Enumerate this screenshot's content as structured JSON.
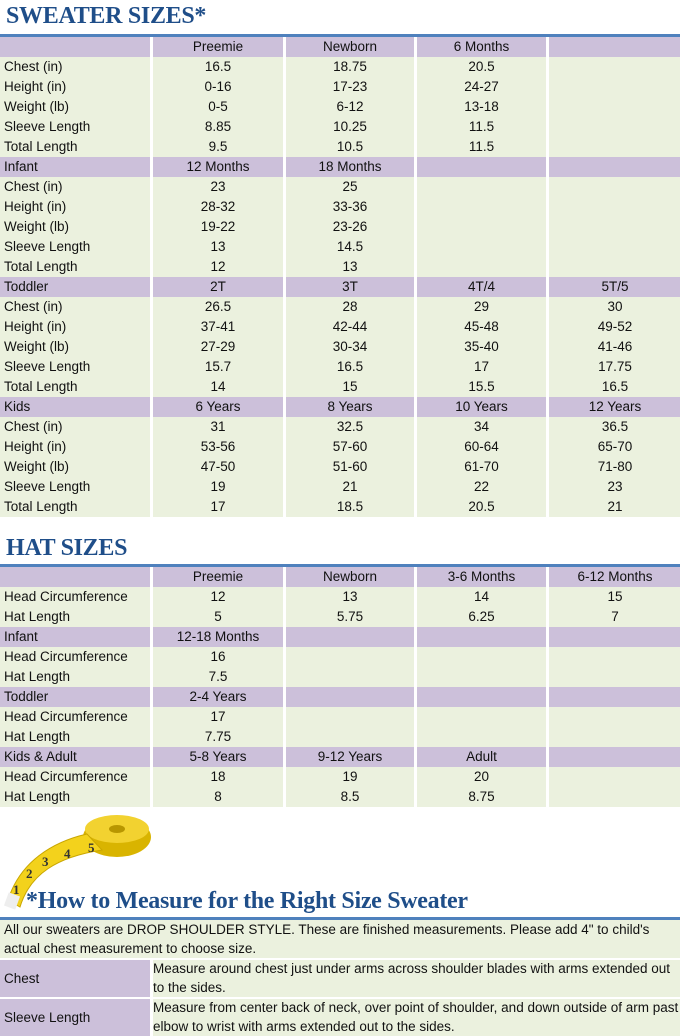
{
  "sweater": {
    "title": "SWEATER SIZES*",
    "groups": [
      {
        "header": [
          "",
          "Preemie",
          "Newborn",
          "6 Months",
          ""
        ],
        "rows": [
          [
            "Chest (in)",
            "16.5",
            "18.75",
            "20.5",
            ""
          ],
          [
            "Height (in)",
            "0-16",
            "17-23",
            "24-27",
            ""
          ],
          [
            "Weight (lb)",
            "0-5",
            "6-12",
            "13-18",
            ""
          ],
          [
            "Sleeve Length",
            "8.85",
            "10.25",
            "11.5",
            ""
          ],
          [
            "Total Length",
            "9.5",
            "10.5",
            "11.5",
            ""
          ]
        ]
      },
      {
        "header": [
          "Infant",
          "12 Months",
          "18 Months",
          "",
          ""
        ],
        "rows": [
          [
            "Chest (in)",
            "23",
            "25",
            "",
            ""
          ],
          [
            "Height (in)",
            "28-32",
            "33-36",
            "",
            ""
          ],
          [
            "Weight (lb)",
            "19-22",
            "23-26",
            "",
            ""
          ],
          [
            "Sleeve Length",
            "13",
            "14.5",
            "",
            ""
          ],
          [
            "Total Length",
            "12",
            "13",
            "",
            ""
          ]
        ]
      },
      {
        "header": [
          "Toddler",
          "2T",
          "3T",
          "4T/4",
          "5T/5"
        ],
        "rows": [
          [
            "Chest (in)",
            "26.5",
            "28",
            "29",
            "30"
          ],
          [
            "Height (in)",
            "37-41",
            "42-44",
            "45-48",
            "49-52"
          ],
          [
            "Weight (lb)",
            "27-29",
            "30-34",
            "35-40",
            "41-46"
          ],
          [
            "Sleeve Length",
            "15.7",
            "16.5",
            "17",
            "17.75"
          ],
          [
            "Total Length",
            "14",
            "15",
            "15.5",
            "16.5"
          ]
        ]
      },
      {
        "header": [
          "Kids",
          "6 Years",
          "8 Years",
          "10 Years",
          "12 Years"
        ],
        "rows": [
          [
            "Chest (in)",
            "31",
            "32.5",
            "34",
            "36.5"
          ],
          [
            "Height (in)",
            "53-56",
            "57-60",
            "60-64",
            "65-70"
          ],
          [
            "Weight (lb)",
            "47-50",
            "51-60",
            "61-70",
            "71-80"
          ],
          [
            "Sleeve Length",
            "19",
            "21",
            "22",
            "23"
          ],
          [
            "Total Length",
            "17",
            "18.5",
            "20.5",
            "21"
          ]
        ]
      }
    ]
  },
  "hat": {
    "title": "HAT SIZES",
    "groups": [
      {
        "header": [
          "",
          "Preemie",
          "Newborn",
          "3-6 Months",
          "6-12 Months"
        ],
        "rows": [
          [
            "Head Circumference",
            "12",
            "13",
            "14",
            "15"
          ],
          [
            "Hat Length",
            "5",
            "5.75",
            "6.25",
            "7"
          ]
        ]
      },
      {
        "header": [
          "Infant",
          "12-18 Months",
          "",
          "",
          ""
        ],
        "rows": [
          [
            "Head Circumference",
            "16",
            "",
            "",
            ""
          ],
          [
            "Hat Length",
            "7.5",
            "",
            "",
            ""
          ]
        ]
      },
      {
        "header": [
          "Toddler",
          "2-4 Years",
          "",
          "",
          ""
        ],
        "rows": [
          [
            "Head Circumference",
            "17",
            "",
            "",
            ""
          ],
          [
            "Hat Length",
            "7.75",
            "",
            "",
            ""
          ]
        ]
      },
      {
        "header": [
          "Kids & Adult",
          "5-8 Years",
          "9-12 Years",
          "Adult",
          ""
        ],
        "rows": [
          [
            "Head Circumference",
            "18",
            "19",
            "20",
            ""
          ],
          [
            "Hat Length",
            "8",
            "8.5",
            "8.75",
            ""
          ]
        ]
      }
    ]
  },
  "measure": {
    "title": "*How to Measure for the Right Size Sweater",
    "intro": "All our sweaters are DROP SHOULDER STYLE.  These are finished measurements.  Please add 4\" to child's actual chest measurement to choose size.",
    "items": [
      {
        "label": "Chest",
        "text": "Measure around chest just under arms across shoulder blades with arms extended out to the sides."
      },
      {
        "label": "Sleeve Length",
        "text": "Measure from center back of neck, over point of shoulder, and down outside of arm past elbow to wrist with arms extended out to the sides."
      }
    ],
    "tape_numbers": [
      "1",
      "2",
      "3",
      "4",
      "5"
    ]
  },
  "colors": {
    "title": "#1f4e89",
    "rule": "#4f81bd",
    "header": "#ccc0da",
    "body": "#ebf1de"
  }
}
